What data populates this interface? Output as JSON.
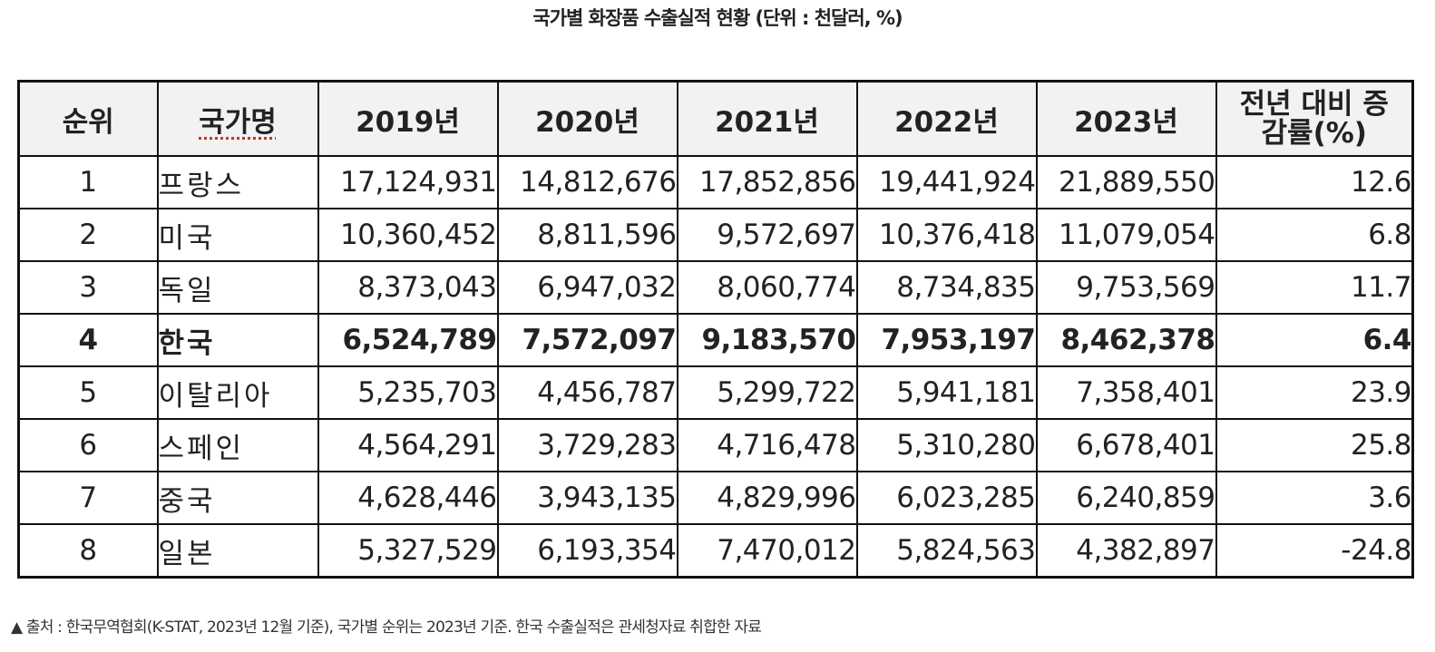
{
  "title": "국가별 화장품 수출실적 현황 (단위 : 천달러, %)",
  "table": {
    "headers": {
      "rank": "순위",
      "country": "국가명",
      "y2019": "2019년",
      "y2020": "2020년",
      "y2021": "2021년",
      "y2022": "2022년",
      "y2023": "2023년",
      "rate": "전년 대비 증감률(%)"
    },
    "rows": [
      {
        "rank": "1",
        "country": "프랑스",
        "y2019": "17,124,931",
        "y2020": "14,812,676",
        "y2021": "17,852,856",
        "y2022": "19,441,924",
        "y2023": "21,889,550",
        "rate": "12.6"
      },
      {
        "rank": "2",
        "country": "미국",
        "y2019": "10,360,452",
        "y2020": "8,811,596",
        "y2021": "9,572,697",
        "y2022": "10,376,418",
        "y2023": "11,079,054",
        "rate": "6.8"
      },
      {
        "rank": "3",
        "country": "독일",
        "y2019": "8,373,043",
        "y2020": "6,947,032",
        "y2021": "8,060,774",
        "y2022": "8,734,835",
        "y2023": "9,753,569",
        "rate": "11.7"
      },
      {
        "rank": "4",
        "country": "한국",
        "y2019": "6,524,789",
        "y2020": "7,572,097",
        "y2021": "9,183,570",
        "y2022": "7,953,197",
        "y2023": "8,462,378",
        "rate": "6.4"
      },
      {
        "rank": "5",
        "country": "이탈리아",
        "y2019": "5,235,703",
        "y2020": "4,456,787",
        "y2021": "5,299,722",
        "y2022": "5,941,181",
        "y2023": "7,358,401",
        "rate": "23.9"
      },
      {
        "rank": "6",
        "country": "스페인",
        "y2019": "4,564,291",
        "y2020": "3,729,283",
        "y2021": "4,716,478",
        "y2022": "5,310,280",
        "y2023": "6,678,401",
        "rate": "25.8"
      },
      {
        "rank": "7",
        "country": "중국",
        "y2019": "4,628,446",
        "y2020": "3,943,135",
        "y2021": "4,829,996",
        "y2022": "6,023,285",
        "y2023": "6,240,859",
        "rate": "3.6"
      },
      {
        "rank": "8",
        "country": "일본",
        "y2019": "5,327,529",
        "y2020": "6,193,354",
        "y2021": "7,470,012",
        "y2022": "5,824,563",
        "y2023": "4,382,897",
        "rate": "-24.8"
      }
    ]
  },
  "footnote": "▲ 출처 : 한국무역협회(K-STAT, 2023년 12월 기준), 국가별 순위는 2023년 기준. 한국 수출실적은 관세청자료 취합한 자료"
}
